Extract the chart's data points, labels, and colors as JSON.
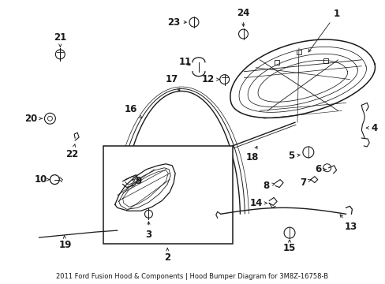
{
  "title": "2011 Ford Fusion Hood & Components\nHood Bumper Diagram for 3M8Z-16758-B",
  "bg_color": "#ffffff",
  "line_color": "#1a1a1a",
  "fig_w": 4.89,
  "fig_h": 3.6,
  "dpi": 100
}
